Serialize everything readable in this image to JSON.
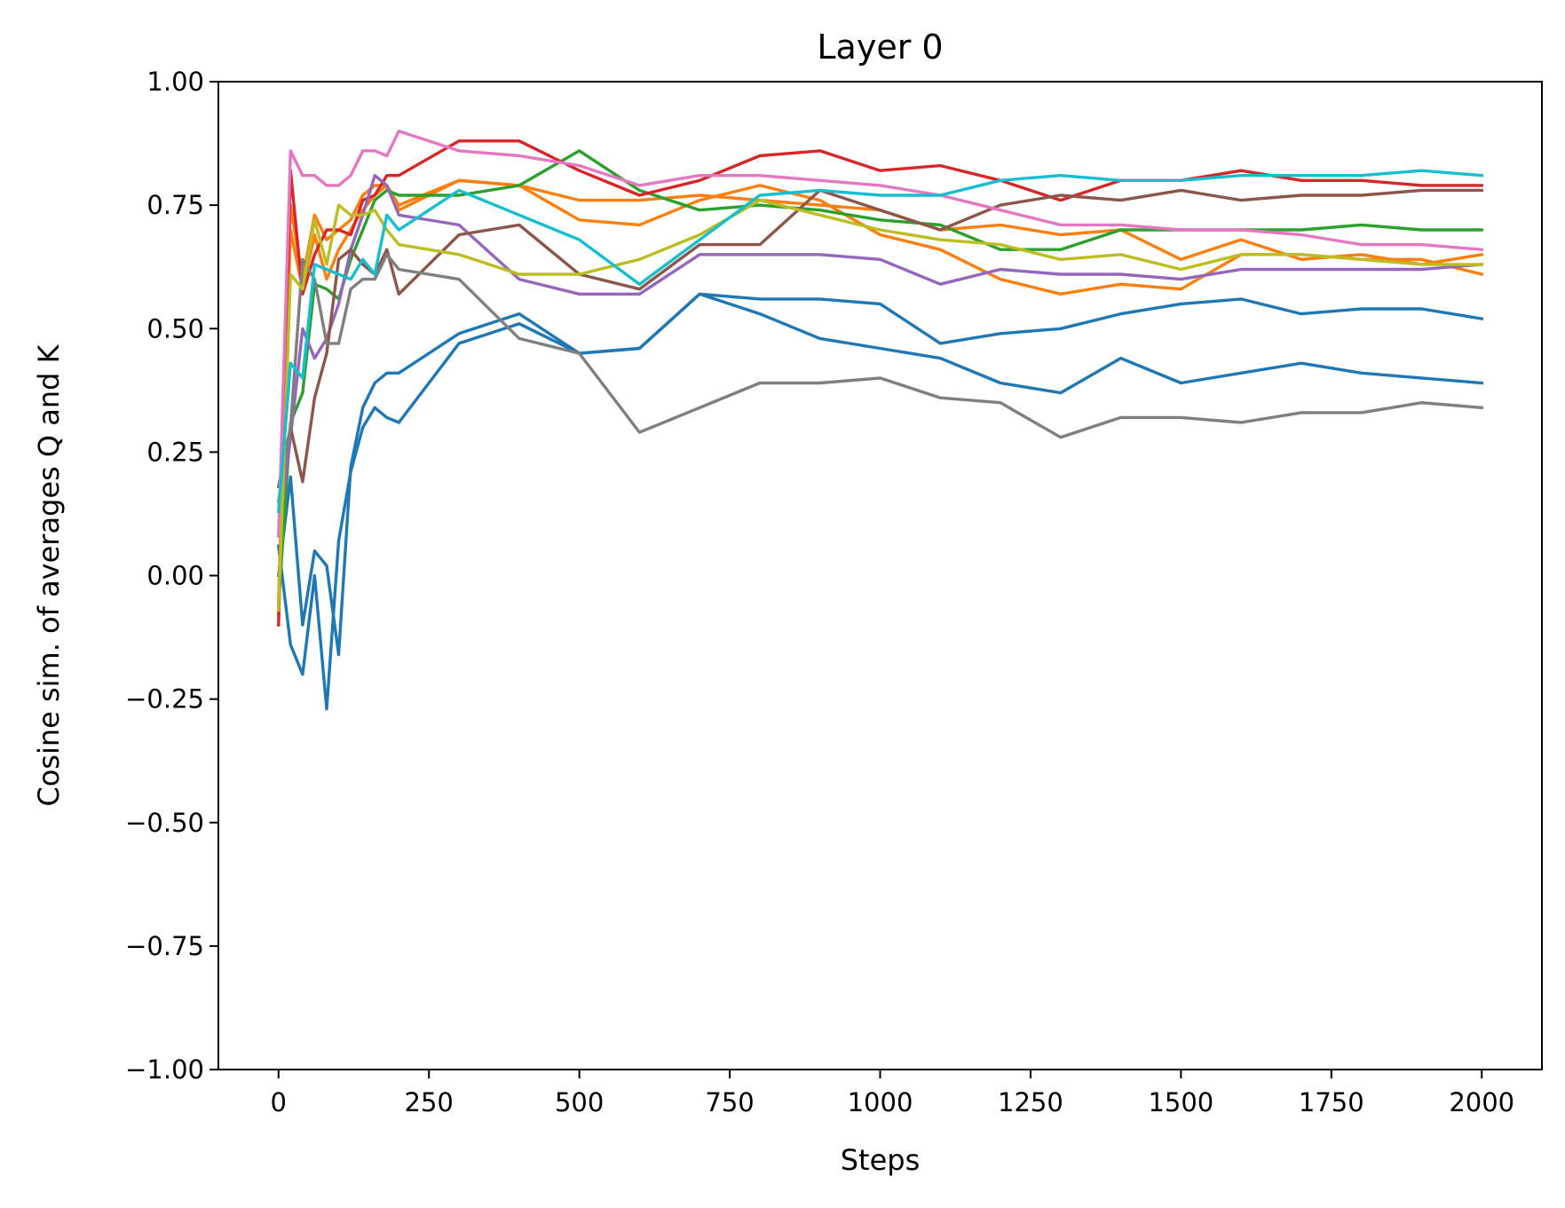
{
  "chart_data": {
    "type": "line",
    "title": "Layer 0",
    "xlabel": "Steps",
    "ylabel": "Cosine sim. of averages Q and K",
    "xlim": [
      -100,
      2100
    ],
    "ylim": [
      -1.0,
      1.0
    ],
    "xticks": [
      0,
      250,
      500,
      750,
      1000,
      1250,
      1500,
      1750,
      2000
    ],
    "xtick_labels": [
      "0",
      "250",
      "500",
      "750",
      "1000",
      "1250",
      "1500",
      "1750",
      "2000"
    ],
    "yticks": [
      -1.0,
      -0.75,
      -0.5,
      -0.25,
      0.0,
      0.25,
      0.5,
      0.75,
      1.0
    ],
    "ytick_labels": [
      "−1.00",
      "−0.75",
      "−0.50",
      "−0.25",
      "0.00",
      "0.25",
      "0.50",
      "0.75",
      "1.00"
    ],
    "grid": false,
    "legend": "none",
    "x": [
      0,
      20,
      40,
      60,
      80,
      100,
      120,
      140,
      160,
      180,
      200,
      300,
      400,
      500,
      600,
      700,
      800,
      900,
      1000,
      1100,
      1200,
      1300,
      1400,
      1500,
      1600,
      1700,
      1800,
      1900,
      2000
    ],
    "series": [
      {
        "color": "#1f77b4",
        "values": [
          0.0,
          0.2,
          -0.1,
          0.05,
          0.02,
          -0.16,
          0.22,
          0.34,
          0.39,
          0.41,
          0.41,
          0.49,
          0.53,
          0.45,
          0.46,
          0.57,
          0.53,
          0.48,
          0.46,
          0.44,
          0.39,
          0.37,
          0.44,
          0.39,
          0.41,
          0.43,
          0.41,
          0.4,
          0.39
        ]
      },
      {
        "color": "#1f77b4",
        "values": [
          0.06,
          -0.14,
          -0.2,
          0.0,
          -0.27,
          0.07,
          0.21,
          0.3,
          0.34,
          0.32,
          0.31,
          0.47,
          0.51,
          0.45,
          0.46,
          0.57,
          0.56,
          0.56,
          0.55,
          0.47,
          0.49,
          0.5,
          0.53,
          0.55,
          0.56,
          0.53,
          0.54,
          0.54,
          0.52
        ]
      },
      {
        "color": "#ff7f0e",
        "values": [
          -0.08,
          0.75,
          0.6,
          0.73,
          0.68,
          0.7,
          0.72,
          0.77,
          0.79,
          0.79,
          0.75,
          0.8,
          0.79,
          0.76,
          0.76,
          0.77,
          0.76,
          0.75,
          0.74,
          0.7,
          0.71,
          0.69,
          0.7,
          0.64,
          0.68,
          0.64,
          0.65,
          0.63,
          0.65
        ]
      },
      {
        "color": "#ff7f0e",
        "values": [
          -0.05,
          0.7,
          0.58,
          0.69,
          0.6,
          0.66,
          0.7,
          0.74,
          0.77,
          0.79,
          0.74,
          0.8,
          0.79,
          0.72,
          0.71,
          0.76,
          0.79,
          0.76,
          0.69,
          0.66,
          0.6,
          0.57,
          0.59,
          0.58,
          0.65,
          0.65,
          0.64,
          0.64,
          0.61
        ]
      },
      {
        "color": "#2ca02c",
        "values": [
          -0.06,
          0.31,
          0.37,
          0.59,
          0.58,
          0.56,
          0.64,
          0.7,
          0.76,
          0.78,
          0.77,
          0.77,
          0.79,
          0.86,
          0.78,
          0.74,
          0.75,
          0.74,
          0.72,
          0.71,
          0.66,
          0.66,
          0.7,
          0.7,
          0.7,
          0.7,
          0.71,
          0.7,
          0.7
        ]
      },
      {
        "color": "#d62728",
        "values": [
          -0.1,
          0.82,
          0.57,
          0.65,
          0.7,
          0.7,
          0.69,
          0.76,
          0.77,
          0.81,
          0.81,
          0.88,
          0.88,
          0.82,
          0.77,
          0.8,
          0.85,
          0.86,
          0.82,
          0.83,
          0.8,
          0.76,
          0.8,
          0.8,
          0.82,
          0.8,
          0.8,
          0.79,
          0.79
        ]
      },
      {
        "color": "#9467bd",
        "values": [
          0.08,
          0.28,
          0.5,
          0.44,
          0.48,
          0.55,
          0.66,
          0.73,
          0.81,
          0.79,
          0.73,
          0.71,
          0.6,
          0.57,
          0.57,
          0.65,
          0.65,
          0.65,
          0.64,
          0.59,
          0.62,
          0.61,
          0.61,
          0.6,
          0.62,
          0.62,
          0.62,
          0.62,
          0.63
        ]
      },
      {
        "color": "#8c564b",
        "values": [
          0.18,
          0.3,
          0.19,
          0.36,
          0.45,
          0.64,
          0.66,
          0.63,
          0.61,
          0.66,
          0.57,
          0.69,
          0.71,
          0.61,
          0.58,
          0.67,
          0.67,
          0.78,
          0.74,
          0.7,
          0.75,
          0.77,
          0.76,
          0.78,
          0.76,
          0.77,
          0.77,
          0.78,
          0.78
        ]
      },
      {
        "color": "#e377c2",
        "values": [
          0.08,
          0.86,
          0.81,
          0.81,
          0.79,
          0.79,
          0.81,
          0.86,
          0.86,
          0.85,
          0.9,
          0.86,
          0.85,
          0.83,
          0.79,
          0.81,
          0.81,
          0.8,
          0.79,
          0.77,
          0.74,
          0.71,
          0.71,
          0.7,
          0.7,
          0.69,
          0.67,
          0.67,
          0.66
        ]
      },
      {
        "color": "#7f7f7f",
        "values": [
          0.15,
          0.3,
          0.64,
          0.6,
          0.47,
          0.47,
          0.58,
          0.6,
          0.6,
          0.65,
          0.62,
          0.6,
          0.48,
          0.45,
          0.29,
          0.34,
          0.39,
          0.39,
          0.4,
          0.36,
          0.35,
          0.28,
          0.32,
          0.32,
          0.31,
          0.33,
          0.33,
          0.35,
          0.34
        ]
      },
      {
        "color": "#bcbd22",
        "values": [
          -0.07,
          0.61,
          0.58,
          0.72,
          0.63,
          0.75,
          0.73,
          0.73,
          0.74,
          0.7,
          0.67,
          0.65,
          0.61,
          0.61,
          0.64,
          0.69,
          0.76,
          0.73,
          0.7,
          0.68,
          0.67,
          0.64,
          0.65,
          0.62,
          0.65,
          0.65,
          0.64,
          0.63,
          0.63
        ]
      },
      {
        "color": "#17becf",
        "values": [
          0.13,
          0.43,
          0.4,
          0.63,
          0.62,
          0.61,
          0.6,
          0.64,
          0.61,
          0.73,
          0.7,
          0.78,
          0.73,
          0.68,
          0.59,
          0.68,
          0.77,
          0.78,
          0.77,
          0.77,
          0.8,
          0.81,
          0.8,
          0.8,
          0.81,
          0.81,
          0.81,
          0.82,
          0.81
        ]
      }
    ]
  }
}
